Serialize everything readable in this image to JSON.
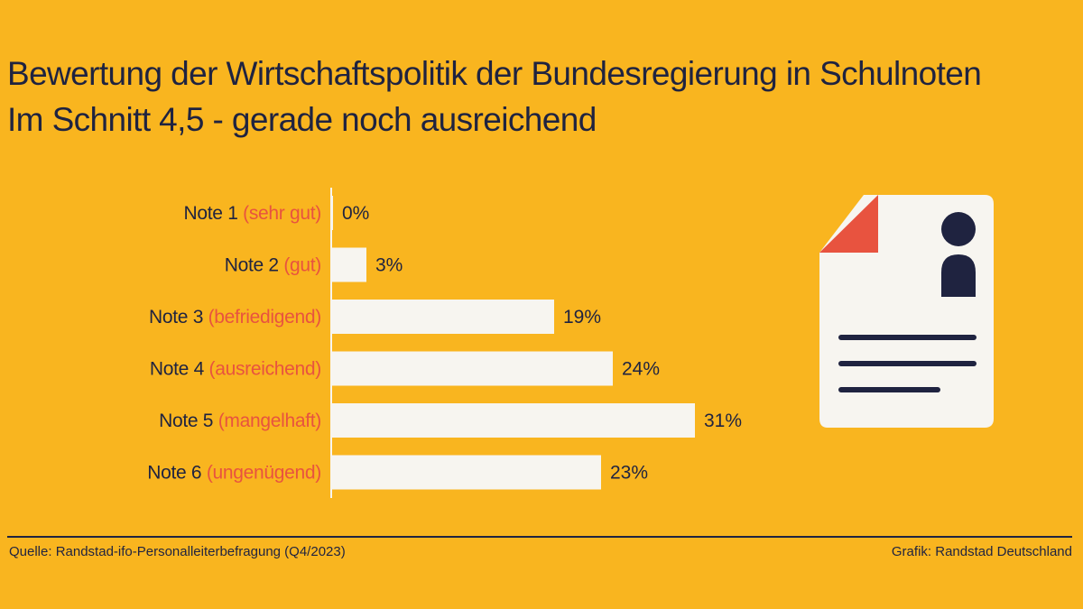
{
  "title": {
    "line1": "Bewertung der Wirtschaftspolitik der Bundesregierung in Schulnoten",
    "line2": "Im Schnitt 4,5 - gerade noch ausreichend"
  },
  "chart_data": {
    "type": "bar",
    "orientation": "horizontal",
    "categories": [
      {
        "grade": "Note 1",
        "desc": "(sehr gut)"
      },
      {
        "grade": "Note 2",
        "desc": "(gut)"
      },
      {
        "grade": "Note 3",
        "desc": "(befriedigend)"
      },
      {
        "grade": "Note 4",
        "desc": "(ausreichend)"
      },
      {
        "grade": "Note 5",
        "desc": "(mangelhaft)"
      },
      {
        "grade": "Note 6",
        "desc": "(ungenügend)"
      }
    ],
    "values": [
      0,
      3,
      19,
      24,
      31,
      23
    ],
    "value_suffix": "%",
    "bar_color": "#f7f5f0",
    "grade_color": "#1f2340",
    "desc_color": "#e8533f",
    "grid": false,
    "legend": "none"
  },
  "footer": {
    "source": "Quelle: Randstad-ifo-Personalleiterbefragung (Q4/2023)",
    "credit": "Grafik: Randstad Deutschland"
  },
  "illustration": {
    "icon": "document-profile-icon",
    "colors": {
      "paper": "#f7f5f0",
      "corner": "#e8533f",
      "ink": "#1f2340"
    }
  },
  "colors": {
    "background": "#f9b51f",
    "text": "#1f2340",
    "accent": "#e8533f"
  }
}
